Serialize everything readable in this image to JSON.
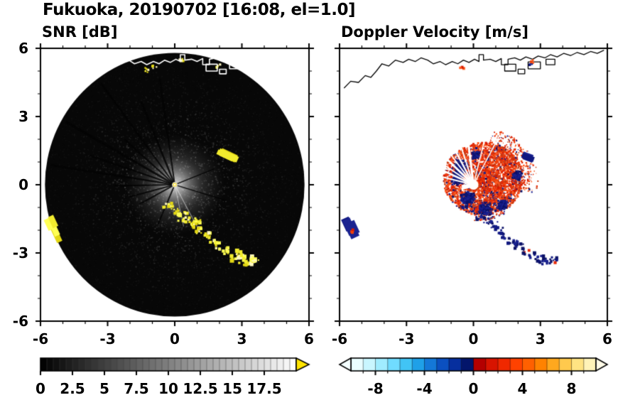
{
  "header": {
    "title": "Fukuoka, 20190702 [16:08, el=1.0]"
  },
  "panels": {
    "snr": {
      "title": "SNR [dB]"
    },
    "doppler": {
      "title": "Doppler Velocity [m/s]"
    }
  },
  "axes": {
    "xlim": [
      -6,
      6
    ],
    "ylim": [
      -6,
      6
    ],
    "xticks": [
      -6,
      -3,
      0,
      3,
      6
    ],
    "yticks": [
      -6,
      -3,
      0,
      3,
      6
    ],
    "minor_tick_step": 1,
    "xtick_labels": [
      "-6",
      "-3",
      "0",
      "3",
      "6"
    ],
    "ytick_labels": [
      "6",
      "3",
      "0",
      "-3",
      "-6"
    ]
  },
  "map": {
    "coastline": [
      [
        -5.8,
        4.25
      ],
      [
        -5.5,
        4.55
      ],
      [
        -5.15,
        4.5
      ],
      [
        -4.85,
        4.8
      ],
      [
        -4.6,
        4.72
      ],
      [
        -4.35,
        5.0
      ],
      [
        -4.1,
        5.32
      ],
      [
        -3.8,
        5.22
      ],
      [
        -3.5,
        5.48
      ],
      [
        -3.15,
        5.38
      ],
      [
        -2.9,
        5.52
      ],
      [
        -2.6,
        5.42
      ],
      [
        -2.35,
        5.58
      ],
      [
        -2.05,
        5.48
      ],
      [
        -1.8,
        5.32
      ],
      [
        -1.5,
        5.42
      ],
      [
        -1.25,
        5.28
      ],
      [
        -0.95,
        5.42
      ],
      [
        -0.7,
        5.32
      ],
      [
        -0.45,
        5.48
      ],
      [
        -0.2,
        5.38
      ],
      [
        0.05,
        5.52
      ],
      [
        0.25,
        5.42
      ],
      [
        0.25,
        5.72
      ],
      [
        0.45,
        5.72
      ],
      [
        0.45,
        5.48
      ],
      [
        0.75,
        5.52
      ],
      [
        1.0,
        5.42
      ],
      [
        1.25,
        5.55
      ],
      [
        1.25,
        5.28
      ],
      [
        1.55,
        5.28
      ],
      [
        1.55,
        5.52
      ],
      [
        1.85,
        5.58
      ],
      [
        2.1,
        5.48
      ],
      [
        2.35,
        5.62
      ],
      [
        2.65,
        5.52
      ],
      [
        2.9,
        5.66
      ],
      [
        3.2,
        5.58
      ],
      [
        3.45,
        5.72
      ],
      [
        3.75,
        5.62
      ],
      [
        4.05,
        5.78
      ],
      [
        4.35,
        5.68
      ],
      [
        4.65,
        5.82
      ],
      [
        4.95,
        5.72
      ],
      [
        5.25,
        5.86
      ],
      [
        5.55,
        5.78
      ],
      [
        5.85,
        5.92
      ]
    ],
    "harbor_boxes": [
      [
        1.4,
        5.0,
        0.5,
        0.3
      ],
      [
        2.45,
        5.1,
        0.55,
        0.3
      ],
      [
        3.25,
        5.28,
        0.4,
        0.24
      ],
      [
        2.0,
        4.88,
        0.3,
        0.2
      ]
    ]
  },
  "colorbars": {
    "snr": {
      "range": [
        0,
        20
      ],
      "segment_step": 0.5,
      "tick_values": [
        0,
        2.5,
        5,
        7.5,
        10,
        12.5,
        15,
        17.5
      ],
      "tick_labels": [
        "0",
        "2.5",
        "5",
        "7.5",
        "10",
        "12.5",
        "15",
        "17.5"
      ],
      "colormap": "grayscale-black-to-white",
      "over_arrow_color": "#ffe400"
    },
    "doppler": {
      "range": [
        -10,
        10
      ],
      "segment_step": 1,
      "tick_values": [
        -8,
        -4,
        0,
        4,
        8
      ],
      "tick_labels": [
        "-8",
        "-4",
        "0",
        "4",
        "8"
      ],
      "segment_colors": [
        "#eafdff",
        "#c9f6ff",
        "#a0ecff",
        "#70dcff",
        "#41c4f5",
        "#1fa0e8",
        "#1478d8",
        "#0b50c0",
        "#062f9e",
        "#03156b",
        "#b40000",
        "#d81400",
        "#f02800",
        "#ff4200",
        "#ff6000",
        "#ff8200",
        "#ffa81e",
        "#ffc94d",
        "#ffe382",
        "#fff3b8"
      ],
      "under_arrow_color": "#f4feff",
      "over_arrow_color": "#fffbe8"
    }
  },
  "chart_data": [
    {
      "type": "heatmap",
      "title": "SNR [dB]",
      "x_range": [
        -6,
        6
      ],
      "y_range": [
        -6,
        6
      ],
      "xticks": [
        -6,
        -3,
        0,
        3,
        6
      ],
      "yticks": [
        -6,
        -3,
        0,
        3,
        6
      ],
      "grid": false,
      "legend": "horizontal colorbar below, 0-20 dB grayscale with yellow over-range arrow",
      "colorbar": {
        "orientation": "horizontal",
        "range": [
          0,
          20
        ],
        "tick_values": [
          0,
          2.5,
          5,
          7.5,
          10,
          12.5,
          15,
          17.5
        ],
        "colormap": "black-to-white",
        "over_color": "#ffe400"
      },
      "scan_disk": {
        "center": [
          0,
          0
        ],
        "radius": 5.8,
        "noise_floor": "0-3 dB near-black speckle",
        "receiver_glow_radius": 1.5
      },
      "blockage_spokes": [
        [
          98,
          4.8,
          2
        ],
        [
          112,
          4.0,
          2.5
        ],
        [
          126,
          5.6,
          2
        ],
        [
          138,
          3.0,
          2
        ],
        [
          150,
          5.6,
          3
        ],
        [
          161,
          4.0,
          2
        ],
        [
          171,
          5.6,
          2.5
        ],
        [
          181,
          2.7,
          2
        ],
        [
          195,
          2.1,
          2
        ],
        [
          209,
          1.8,
          2
        ],
        [
          247,
          1.9,
          2
        ],
        [
          343,
          2.4,
          1.5
        ],
        [
          22,
          1.9,
          1.5
        ]
      ],
      "bright_rays": [
        [
          -62,
          2.4,
          1.2
        ],
        [
          -78,
          1.9,
          1.0
        ]
      ],
      "high_snr_clutter_arc": [
        [
          -0.3,
          -0.9
        ],
        [
          0.0,
          -1.12
        ],
        [
          0.3,
          -1.38
        ],
        [
          0.62,
          -1.58
        ],
        [
          0.95,
          -1.78
        ],
        [
          1.15,
          -2.0
        ],
        [
          1.45,
          -2.25
        ],
        [
          1.75,
          -2.5
        ],
        [
          2.05,
          -2.7
        ],
        [
          2.35,
          -2.92
        ],
        [
          2.7,
          -3.12
        ],
        [
          3.0,
          -3.28
        ],
        [
          3.3,
          -3.35
        ],
        [
          3.58,
          -3.28
        ]
      ],
      "extra_echo": [
        1.08,
        -1.62
      ],
      "northeast_streak": {
        "center": [
          2.3,
          1.25
        ],
        "angle_deg": -25,
        "length": 0.55,
        "width": 0.16
      },
      "west_edge_streak": {
        "center": [
          -5.48,
          -1.88
        ],
        "angle_deg": -65,
        "length": 0.5,
        "width": 0.18
      },
      "coast_echoes": [
        [
          -1.25,
          5.05,
          0.14
        ],
        [
          -0.9,
          5.18,
          0.1
        ],
        [
          1.95,
          5.22,
          0.1
        ],
        [
          0.3,
          5.5,
          0.08
        ]
      ],
      "echo_colors": [
        "#f2ec2e",
        "#ffff55",
        "#e3d714",
        "#fff9c0"
      ],
      "coastline_color": "#ffffff"
    },
    {
      "type": "heatmap",
      "title": "Doppler Velocity [m/s]",
      "x_range": [
        -6,
        6
      ],
      "y_range": [
        -6,
        6
      ],
      "xticks": [
        -6,
        -3,
        0,
        3,
        6
      ],
      "yticks": [
        -6,
        -3,
        0,
        3,
        6
      ],
      "grid": false,
      "legend": "horizontal colorbar below, -10 to 10 m/s, cyan-blue-navy negative / red-orange-yellow positive",
      "colorbar": {
        "orientation": "horizontal",
        "range": [
          -10,
          10
        ],
        "tick_values": [
          -8,
          -4,
          0,
          4,
          8
        ],
        "units": "m/s"
      },
      "echo_cluster": {
        "center": [
          0.45,
          0.25
        ],
        "radius_x": 1.8,
        "radius_y": 1.6,
        "dominant": "positive velocity (red-orange, ~+2 to +6 m/s)",
        "negative_patches": [
          [
            -0.55,
            0.8,
            0.32
          ],
          [
            -0.7,
            0.25,
            0.28
          ],
          [
            -0.25,
            -0.6,
            0.33
          ],
          [
            0.5,
            -1.05,
            0.3
          ],
          [
            1.95,
            0.4,
            0.22
          ],
          [
            0.1,
            1.3,
            0.18
          ],
          [
            1.3,
            -0.9,
            0.22
          ]
        ]
      },
      "white_spokes": [
        [
          97,
          3.8,
          3
        ],
        [
          108,
          3.3,
          2
        ],
        [
          118,
          4.1,
          2.5
        ],
        [
          127,
          3.0,
          2
        ],
        [
          136,
          4.1,
          3
        ],
        [
          146,
          3.2,
          2
        ],
        [
          155,
          4.0,
          2.5
        ],
        [
          166,
          2.5,
          2
        ],
        [
          76,
          2.8,
          1.5
        ],
        [
          62,
          2.5,
          1.5
        ]
      ],
      "center_hole_radius_px": 7,
      "clutter_arc": [
        [
          -0.3,
          -0.9
        ],
        [
          0.0,
          -1.12
        ],
        [
          0.3,
          -1.38
        ],
        [
          0.62,
          -1.58
        ],
        [
          0.95,
          -1.78
        ],
        [
          1.15,
          -2.0
        ],
        [
          1.45,
          -2.25
        ],
        [
          1.75,
          -2.5
        ],
        [
          2.05,
          -2.7
        ],
        [
          2.35,
          -2.92
        ],
        [
          2.7,
          -3.12
        ],
        [
          3.0,
          -3.28
        ],
        [
          3.3,
          -3.35
        ],
        [
          3.58,
          -3.28
        ]
      ],
      "west_edge_patch": {
        "center": [
          -5.48,
          -1.88
        ],
        "angle_deg": -65,
        "length": 0.5,
        "width": 0.18
      },
      "west_edge_red": [
        -5.38,
        -2.05,
        0.12
      ],
      "northeast_dash": {
        "center": [
          2.5,
          1.2
        ],
        "angle_deg": -20,
        "length": 0.35,
        "width": 0.12
      },
      "coast_echoes_red": [
        [
          -0.55,
          5.12,
          0.12
        ],
        [
          2.55,
          5.42,
          0.12
        ]
      ],
      "coast_echoes_navy": [
        [
          2.62,
          5.28,
          0.1
        ]
      ],
      "negative_colors": [
        "#101880",
        "#0b1166",
        "#1a2290"
      ],
      "positive_colors": [
        "#e62b09",
        "#f0400a",
        "#d81a00",
        "#ff5a1e",
        "#c63a10"
      ],
      "coastline_color": "#000000"
    }
  ]
}
